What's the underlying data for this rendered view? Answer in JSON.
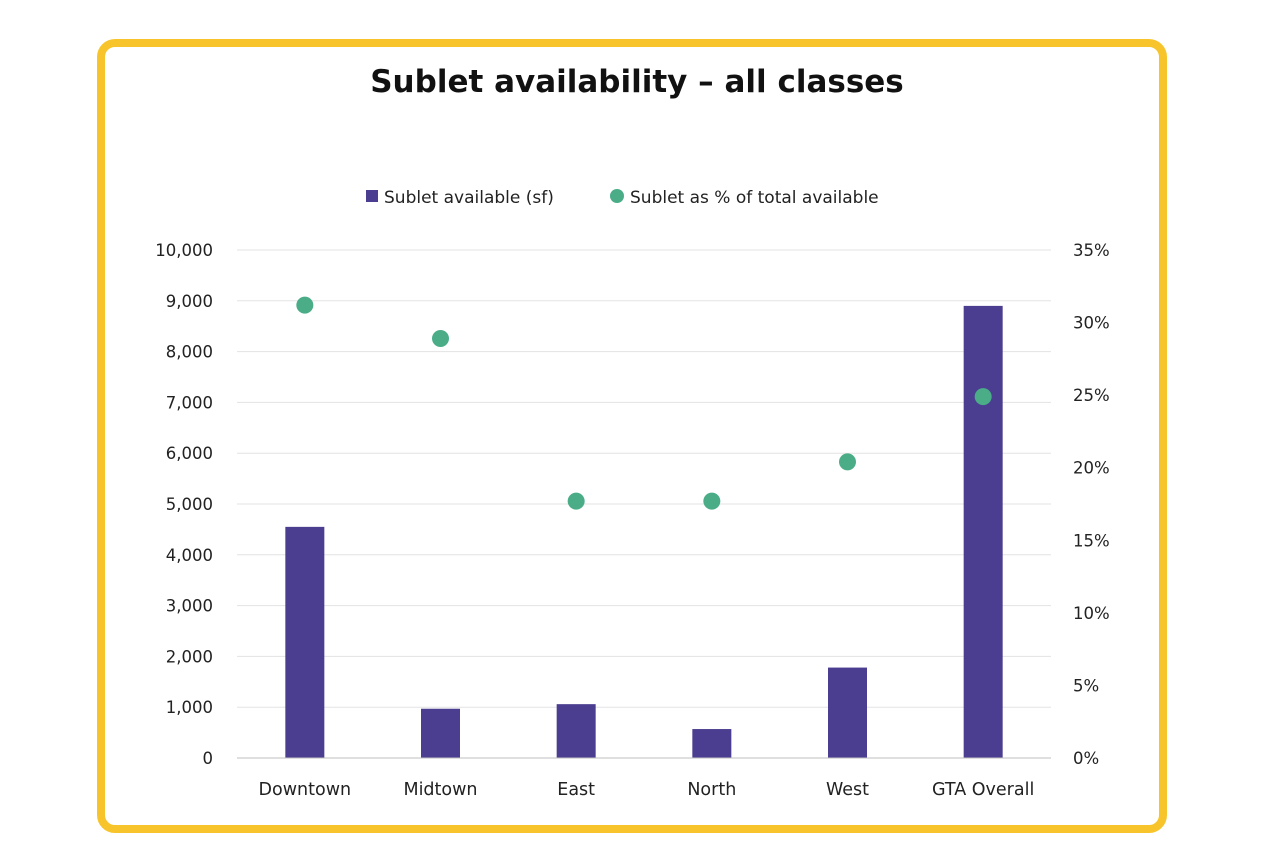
{
  "colors": {
    "frame": "#f7c52b",
    "bar": "#4b3d90",
    "dot": "#4aad88",
    "grid": "#e3e3e3",
    "axis": "#bfbfbf"
  },
  "chart_data": {
    "type": "bar",
    "title": "Sublet availability – all classes",
    "categories": [
      "Downtown",
      "Midtown",
      "East",
      "North",
      "West",
      "GTA Overall"
    ],
    "series": [
      {
        "name": "Sublet available (sf)",
        "type": "bar",
        "axis": "left",
        "values": [
          4550,
          970,
          1060,
          570,
          1780,
          8900
        ]
      },
      {
        "name": "Sublet as % of total available",
        "type": "scatter",
        "axis": "right",
        "values": [
          31.2,
          28.9,
          17.7,
          17.7,
          20.4,
          24.9
        ]
      }
    ],
    "y_left": {
      "range": [
        0,
        10000
      ],
      "ticks": [
        0,
        1000,
        2000,
        3000,
        4000,
        5000,
        6000,
        7000,
        8000,
        9000,
        10000
      ],
      "tick_labels": [
        "0",
        "1,000",
        "2,000",
        "3,000",
        "4,000",
        "5,000",
        "6,000",
        "7,000",
        "8,000",
        "9,000",
        "10,000"
      ]
    },
    "y_right": {
      "range": [
        0,
        35
      ],
      "ticks": [
        0,
        5,
        10,
        15,
        20,
        25,
        30,
        35
      ],
      "tick_labels": [
        "0%",
        "5%",
        "10%",
        "15%",
        "20%",
        "25%",
        "30%",
        "35%"
      ]
    },
    "grid": true,
    "legend_position": "top-center"
  }
}
